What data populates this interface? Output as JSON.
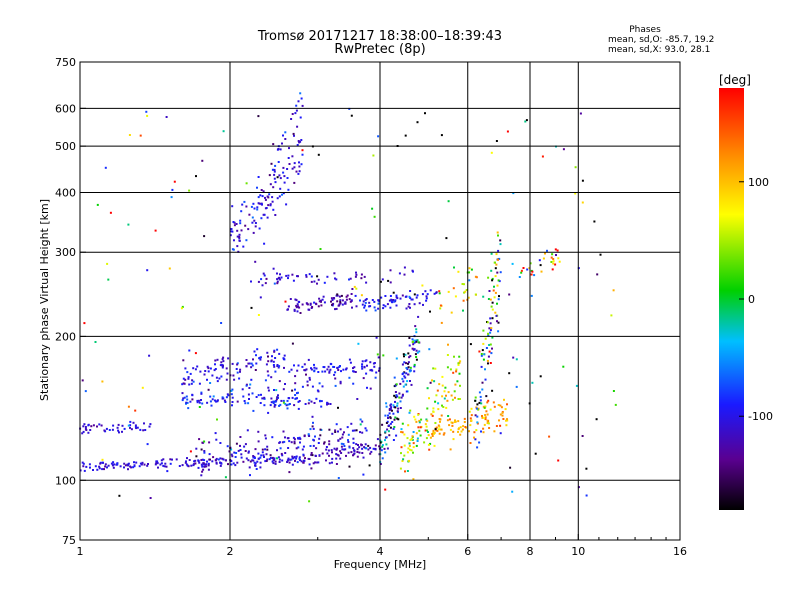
{
  "chart_data": {
    "type": "scatter",
    "title": "Tromsø 20171217 18:38:00–18:39:43",
    "subtitle": "RwPretec (8p)",
    "stats": {
      "heading": "Phases",
      "line1": "mean, sd,O: -85.7, 19.2",
      "line2": "mean, sd,X:  93.0, 28.1"
    },
    "xlabel": "Frequency [MHz]",
    "ylabel": "Stationary phase Virtual Height [km]",
    "x_scale": "log",
    "y_scale": "log",
    "xlim": [
      1,
      16
    ],
    "ylim": [
      75,
      750
    ],
    "x_ticks": [
      1,
      2,
      4,
      6,
      8,
      10,
      16
    ],
    "x_tick_labels": [
      "1",
      "2",
      "4",
      "6",
      "8",
      "10",
      "16"
    ],
    "x_grid": [
      2,
      4,
      6,
      8,
      10
    ],
    "y_ticks": [
      75,
      100,
      200,
      300,
      400,
      500,
      600,
      750
    ],
    "y_tick_labels": [
      "75",
      "100",
      "200",
      "300",
      "400",
      "500",
      "600",
      "750"
    ],
    "y_grid": [
      100,
      200,
      300,
      400,
      500,
      600
    ],
    "grid": true,
    "colorbar": {
      "label": "[deg]",
      "range": [
        -180,
        180
      ],
      "ticks": [
        100,
        0,
        -100
      ],
      "tick_labels": [
        "100",
        "0",
        "-100"
      ],
      "position": "right"
    },
    "traces": [
      {
        "f0": 1.0,
        "f1": 1.5,
        "h0": 107,
        "h1": 108,
        "n": 70,
        "phase": -110,
        "spread_ph": 12,
        "spread_h": 0.012
      },
      {
        "f0": 1.5,
        "f1": 2.8,
        "h0": 108,
        "h1": 111,
        "n": 110,
        "phase": -105,
        "spread_ph": 15,
        "spread_h": 0.012
      },
      {
        "f0": 2.8,
        "f1": 4.0,
        "h0": 110,
        "h1": 117,
        "n": 80,
        "phase": -120,
        "spread_ph": 12,
        "spread_h": 0.018
      },
      {
        "f0": 1.0,
        "f1": 1.4,
        "h0": 128,
        "h1": 130,
        "n": 45,
        "phase": -105,
        "spread_ph": 12,
        "spread_h": 0.012
      },
      {
        "f0": 1.7,
        "f1": 3.8,
        "h0": 112,
        "h1": 125,
        "n": 170,
        "phase": -115,
        "spread_ph": 25,
        "spread_h": 0.04
      },
      {
        "f0": 1.6,
        "f1": 3.2,
        "h0": 148,
        "h1": 146,
        "n": 110,
        "phase": -95,
        "spread_ph": 18,
        "spread_h": 0.02
      },
      {
        "f0": 1.6,
        "f1": 2.6,
        "h0": 165,
        "h1": 180,
        "n": 100,
        "phase": -105,
        "spread_ph": 15,
        "spread_h": 0.03
      },
      {
        "f0": 2.6,
        "f1": 4.0,
        "h0": 170,
        "h1": 174,
        "n": 70,
        "phase": -100,
        "spread_ph": 12,
        "spread_h": 0.015
      },
      {
        "f0": 1.6,
        "f1": 4.0,
        "h0": 156,
        "h1": 160,
        "n": 60,
        "phase": -100,
        "spread_ph": 30,
        "spread_h": 0.03
      },
      {
        "f0": 2.0,
        "f1": 2.8,
        "h0": 320,
        "h1": 480,
        "n": 120,
        "phase": -105,
        "spread_ph": 18,
        "spread_h": 0.07
      },
      {
        "f0": 2.4,
        "f1": 2.8,
        "h0": 450,
        "h1": 620,
        "n": 25,
        "phase": -100,
        "spread_ph": 25,
        "spread_h": 0.04
      },
      {
        "f0": 2.2,
        "f1": 3.0,
        "h0": 260,
        "h1": 272,
        "n": 30,
        "phase": -110,
        "spread_ph": 15,
        "spread_h": 0.015
      },
      {
        "f0": 2.6,
        "f1": 3.6,
        "h0": 228,
        "h1": 240,
        "n": 80,
        "phase": -120,
        "spread_ph": 12,
        "spread_h": 0.02
      },
      {
        "f0": 3.6,
        "f1": 5.2,
        "h0": 230,
        "h1": 245,
        "n": 70,
        "phase": -100,
        "spread_ph": 15,
        "spread_h": 0.02
      },
      {
        "f0": 2.9,
        "f1": 4.7,
        "h0": 262,
        "h1": 272,
        "n": 25,
        "phase": -110,
        "spread_ph": 20,
        "spread_h": 0.015
      },
      {
        "f0": 4.0,
        "f1": 4.8,
        "h0": 115,
        "h1": 205,
        "n": 150,
        "phase": -100,
        "spread_ph": 60,
        "spread_h": 0.06
      },
      {
        "f0": 4.4,
        "f1": 5.8,
        "h0": 115,
        "h1": 170,
        "n": 120,
        "phase": 60,
        "spread_ph": 60,
        "spread_h": 0.08
      },
      {
        "f0": 5.0,
        "f1": 7.2,
        "h0": 125,
        "h1": 140,
        "n": 110,
        "phase": 110,
        "spread_ph": 25,
        "spread_h": 0.04
      },
      {
        "f0": 6.2,
        "f1": 7.0,
        "h0": 140,
        "h1": 290,
        "n": 100,
        "phase": -40,
        "spread_ph": 120,
        "spread_h": 0.12
      },
      {
        "f0": 7.6,
        "f1": 9.2,
        "h0": 275,
        "h1": 295,
        "n": 30,
        "phase": 60,
        "spread_ph": 100,
        "spread_h": 0.03
      },
      {
        "f0": 5.2,
        "f1": 6.3,
        "h0": 230,
        "h1": 270,
        "n": 30,
        "phase": 90,
        "spread_ph": 60,
        "spread_h": 0.06
      },
      {
        "f0": 1.0,
        "f1": 12.0,
        "h0": 90,
        "h1": 600,
        "n": 160,
        "phase": -60,
        "spread_ph": 150,
        "spread_h": 0.0
      }
    ]
  }
}
